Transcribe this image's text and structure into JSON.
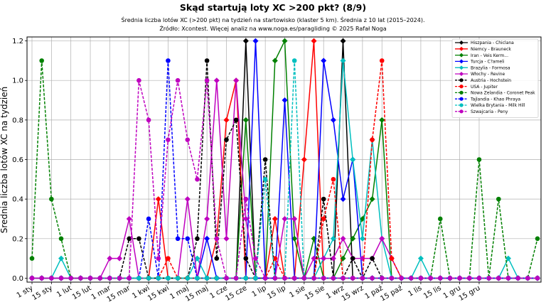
{
  "chart_data": {
    "type": "line",
    "title": "Skąd startują loty XC >200 pkt? (8/9)",
    "subtitle_lines": [
      "Średnia liczba lotów XC (>200 pkt) na tydzień na startowisko (klaster 5 km). Średnia z 10 lat (2015–2024).",
      "Źródło: Xcontest. Więcej analiz na www.noga.es/paragliding © 2025 Rafał Noga"
    ],
    "xlabel": "",
    "ylabel": "Średnia liczba lotów XC na tydzień",
    "xlim": [
      0,
      52
    ],
    "ylim": [
      -0.02,
      1.22
    ],
    "grid": true,
    "legend_position": "top-right",
    "x_ticks": [
      {
        "x": 0,
        "label": "1 sty"
      },
      {
        "x": 2,
        "label": "15 sty"
      },
      {
        "x": 4,
        "label": "1 lut"
      },
      {
        "x": 6,
        "label": "15 lut"
      },
      {
        "x": 8,
        "label": "1 mar"
      },
      {
        "x": 10,
        "label": "15 mar"
      },
      {
        "x": 12,
        "label": "1 kwi"
      },
      {
        "x": 14,
        "label": "15 kwi"
      },
      {
        "x": 16,
        "label": "1 maj"
      },
      {
        "x": 18,
        "label": "15 maj"
      },
      {
        "x": 20,
        "label": "1 cze"
      },
      {
        "x": 22,
        "label": "15 cze"
      },
      {
        "x": 24,
        "label": "1 lip"
      },
      {
        "x": 26,
        "label": "15 lip"
      },
      {
        "x": 28,
        "label": "1 sie"
      },
      {
        "x": 30,
        "label": "15 sie"
      },
      {
        "x": 32,
        "label": "1 wrz"
      },
      {
        "x": 34,
        "label": "15 wrz"
      },
      {
        "x": 36,
        "label": "1 paź"
      },
      {
        "x": 38,
        "label": "15 paź"
      },
      {
        "x": 40,
        "label": "1 lis"
      },
      {
        "x": 42,
        "label": "15 lis"
      },
      {
        "x": 44,
        "label": "1 gru"
      },
      {
        "x": 46,
        "label": "15 gru"
      }
    ],
    "y_ticks": [
      "0.0",
      "0.2",
      "0.4",
      "0.6",
      "0.8",
      "1.0",
      "1.2"
    ],
    "y_tick_values": [
      0,
      0.2,
      0.4,
      0.6,
      0.8,
      1.0,
      1.2
    ],
    "series": [
      {
        "name": "Hiszpania - Chiclana",
        "color": "#000000",
        "dash": false,
        "marker": "diamond",
        "values": [
          0,
          0,
          0,
          0,
          0,
          0,
          0,
          0,
          0,
          0,
          0,
          0,
          0,
          0,
          0,
          0,
          0,
          0,
          0,
          0,
          0,
          0,
          1.2,
          0,
          0,
          0,
          0,
          0,
          0,
          0,
          0,
          0,
          1.2,
          0,
          0,
          0,
          0,
          0,
          0,
          0,
          0,
          0,
          0,
          0,
          0,
          0,
          0,
          0,
          0,
          0,
          0,
          0,
          0
        ]
      },
      {
        "name": "Niemcy - Brauneck",
        "color": "#ff0000",
        "dash": false,
        "marker": "diamond",
        "values": [
          0,
          0,
          0,
          0,
          0,
          0,
          0,
          0,
          0,
          0,
          0,
          0,
          0,
          0.4,
          0,
          0,
          0,
          0,
          0,
          0.2,
          0.8,
          1.0,
          0,
          0,
          0,
          0.3,
          0,
          0,
          0.6,
          1.2,
          0,
          0,
          0,
          0,
          0,
          0,
          0,
          0,
          0,
          0,
          0,
          0,
          0,
          0,
          0,
          0,
          0,
          0,
          0,
          0,
          0,
          0,
          0
        ]
      },
      {
        "name": "Iran - Veis Kerm...",
        "color": "#008000",
        "dash": false,
        "marker": "diamond",
        "values": [
          0,
          0,
          0,
          0,
          0,
          0,
          0,
          0,
          0,
          0,
          0,
          0,
          0,
          0,
          0,
          0,
          0,
          0,
          0,
          0,
          0,
          0,
          0.8,
          0,
          0,
          1.1,
          1.2,
          0.2,
          0,
          0.2,
          0,
          0,
          0.1,
          0.2,
          0.3,
          0.4,
          0.8,
          0,
          0,
          0,
          0,
          0,
          0,
          0,
          0,
          0,
          0,
          0,
          0,
          0,
          0,
          0,
          0
        ]
      },
      {
        "name": "Turcja - C?ameli",
        "color": "#0000ff",
        "dash": false,
        "marker": "diamond",
        "values": [
          0,
          0,
          0,
          0,
          0,
          0,
          0,
          0,
          0,
          0,
          0,
          0,
          0,
          0,
          0,
          0,
          0,
          0,
          0.2,
          0,
          0,
          0,
          0,
          1.2,
          0,
          0,
          0.9,
          0,
          0,
          0,
          1.1,
          0.8,
          0.4,
          0.6,
          0,
          0,
          0,
          0,
          0,
          0,
          0,
          0,
          0,
          0,
          0,
          0,
          0,
          0,
          0,
          0,
          0,
          0,
          0
        ]
      },
      {
        "name": "Brazylia - Formosa",
        "color": "#00bfbf",
        "dash": false,
        "marker": "diamond",
        "values": [
          0,
          0,
          0,
          0.1,
          0,
          0,
          0,
          0,
          0,
          0,
          0,
          0,
          0,
          0,
          0,
          0,
          0,
          0.1,
          0,
          0,
          0,
          0,
          0,
          0,
          0,
          0,
          0,
          0,
          0,
          0,
          0.1,
          0.2,
          1.1,
          0.6,
          0.2,
          0.7,
          0.2,
          0,
          0,
          0,
          0.1,
          0,
          0,
          0,
          0,
          0,
          0,
          0,
          0,
          0.1,
          0,
          0,
          0
        ]
      },
      {
        "name": "Włochy - Revine",
        "color": "#bf00bf",
        "dash": false,
        "marker": "diamond",
        "values": [
          0,
          0,
          0,
          0,
          0,
          0,
          0,
          0,
          0.1,
          0.1,
          0.3,
          0,
          0,
          0,
          0,
          0,
          0.4,
          0,
          0.3,
          1.0,
          0.2,
          1.0,
          0.3,
          0,
          0,
          0,
          0.3,
          0.3,
          0,
          0.1,
          0.1,
          0.1,
          0.2,
          0.1,
          0.1,
          0.1,
          0.2,
          0.1,
          0,
          0,
          0,
          0,
          0,
          0,
          0,
          0,
          0,
          0,
          0,
          0,
          0,
          0,
          0
        ]
      },
      {
        "name": "Austria - Hochstein",
        "color": "#000000",
        "dash": true,
        "marker": "circle",
        "values": [
          0,
          0,
          0,
          0,
          0,
          0,
          0,
          0,
          0,
          0,
          0.2,
          0.2,
          0,
          0,
          0,
          0,
          0,
          0.2,
          1.1,
          0.1,
          0.7,
          0.8,
          0.1,
          0,
          0.6,
          0,
          0,
          0,
          0,
          0,
          0.4,
          0,
          0,
          0.1,
          0,
          0.1,
          0,
          0,
          0,
          0,
          0,
          0,
          0,
          0,
          0,
          0,
          0,
          0,
          0,
          0,
          0,
          0,
          0
        ]
      },
      {
        "name": "USA - Jupiter",
        "color": "#ff0000",
        "dash": true,
        "marker": "circle",
        "values": [
          0,
          0,
          0,
          0,
          0,
          0,
          0,
          0,
          0,
          0,
          0,
          0,
          0,
          0,
          0.1,
          0,
          0,
          0,
          0,
          0,
          0,
          0,
          0,
          0,
          0,
          0.1,
          0,
          0,
          0,
          0,
          0.3,
          0.5,
          0,
          0,
          0,
          0.7,
          1.1,
          0.1,
          0,
          0,
          0,
          0,
          0,
          0,
          0,
          0,
          0,
          0,
          0,
          0,
          0,
          0,
          0
        ]
      },
      {
        "name": "Nowa Zelandia - Coronet Peak",
        "color": "#008000",
        "dash": true,
        "marker": "circle",
        "values": [
          0.1,
          1.1,
          0.4,
          0.2,
          0,
          0,
          0,
          0,
          0,
          0,
          0,
          0,
          0,
          0,
          0,
          0,
          0,
          0,
          0,
          0,
          0,
          0,
          0,
          0,
          0,
          0,
          0,
          0,
          0,
          0,
          0,
          0,
          0,
          0,
          0,
          0,
          0,
          0,
          0,
          0,
          0,
          0,
          0.3,
          0,
          0,
          0,
          0.6,
          0,
          0.4,
          0,
          0,
          0,
          0.2
        ]
      },
      {
        "name": "Tajlandia - Khao Phraya",
        "color": "#0000ff",
        "dash": true,
        "marker": "circle",
        "values": [
          0,
          0,
          0,
          0,
          0,
          0,
          0,
          0,
          0,
          0,
          0,
          0,
          0.3,
          0,
          1.1,
          0.2,
          0.2,
          0,
          0,
          0,
          0,
          0,
          0,
          0,
          0,
          0,
          0,
          0,
          0,
          0,
          0,
          0,
          0,
          0,
          0,
          0,
          0,
          0,
          0,
          0,
          0,
          0,
          0,
          0,
          0,
          0,
          0,
          0,
          0,
          0,
          0,
          0,
          0
        ]
      },
      {
        "name": "Wielka Brytania - Milk Hill",
        "color": "#00bfbf",
        "dash": true,
        "marker": "circle",
        "values": [
          0,
          0,
          0,
          0,
          0,
          0,
          0,
          0,
          0,
          0,
          0,
          0,
          0,
          0,
          0,
          0,
          0,
          0,
          0,
          0,
          0,
          0,
          0,
          0,
          0.5,
          0,
          0,
          1.1,
          0,
          0,
          0,
          0,
          0,
          0,
          0,
          0,
          0,
          0,
          0,
          0,
          0,
          0,
          0,
          0,
          0,
          0,
          0,
          0,
          0,
          0,
          0,
          0,
          0
        ]
      },
      {
        "name": "Szwajcaria - Peny",
        "color": "#bf00bf",
        "dash": true,
        "marker": "circle",
        "values": [
          0,
          0,
          0,
          0,
          0,
          0,
          0,
          0,
          0,
          0,
          0,
          1.0,
          0.8,
          0.1,
          0.7,
          1.0,
          0.7,
          0.5,
          1.0,
          0.2,
          0,
          0,
          0.4,
          0.1,
          0,
          0,
          0,
          0,
          0,
          0,
          0,
          0,
          0,
          0,
          0,
          0,
          0,
          0,
          0,
          0,
          0,
          0,
          0,
          0,
          0,
          0,
          0,
          0,
          0,
          0,
          0,
          0,
          0
        ]
      }
    ]
  }
}
